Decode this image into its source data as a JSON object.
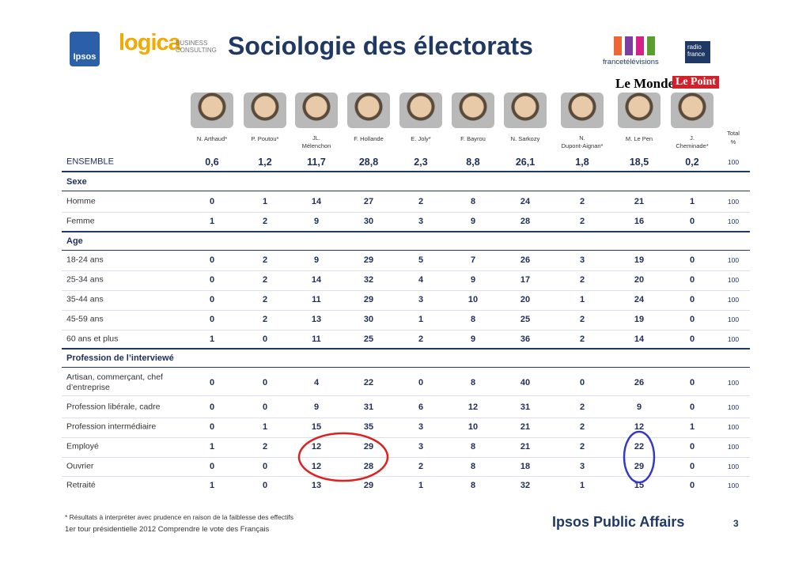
{
  "header": {
    "title": "Sociologie des électorats",
    "logos": [
      "Ipsos",
      "logica",
      "BUSINESS CONSULTING",
      "francetélévisions",
      "radio france",
      "Le Monde",
      "Le Point"
    ]
  },
  "table": {
    "columns": [
      [
        "N. Arthaud*"
      ],
      [
        "P. Poutou*"
      ],
      [
        "JL.",
        "Mélenchon"
      ],
      [
        "F. Hollande"
      ],
      [
        "E. Joly*"
      ],
      [
        "F. Bayrou"
      ],
      [
        "N. Sarkozy"
      ],
      [
        "N.",
        "Dupont-Aignan*"
      ],
      [
        "M. Le Pen"
      ],
      [
        "J.",
        "Cheminade*"
      ]
    ],
    "total_header": [
      "Total",
      "%"
    ],
    "overall": {
      "label": "ENSEMBLE",
      "values": [
        "0,6",
        "1,2",
        "11,7",
        "28,8",
        "2,3",
        "8,8",
        "26,1",
        "1,8",
        "18,5",
        "0,2"
      ],
      "total": "100"
    },
    "sections": [
      {
        "title": "Sexe",
        "rows": [
          {
            "label": "Homme",
            "values": [
              "0",
              "1",
              "14",
              "27",
              "2",
              "8",
              "24",
              "2",
              "21",
              "1"
            ],
            "total": "100"
          },
          {
            "label": "Femme",
            "values": [
              "1",
              "2",
              "9",
              "30",
              "3",
              "9",
              "28",
              "2",
              "16",
              "0"
            ],
            "total": "100"
          }
        ]
      },
      {
        "title": "Age",
        "rows": [
          {
            "label": "18-24 ans",
            "values": [
              "0",
              "2",
              "9",
              "29",
              "5",
              "7",
              "26",
              "3",
              "19",
              "0"
            ],
            "total": "100"
          },
          {
            "label": "25-34 ans",
            "values": [
              "0",
              "2",
              "14",
              "32",
              "4",
              "9",
              "17",
              "2",
              "20",
              "0"
            ],
            "total": "100"
          },
          {
            "label": "35-44 ans",
            "values": [
              "0",
              "2",
              "11",
              "29",
              "3",
              "10",
              "20",
              "1",
              "24",
              "0"
            ],
            "total": "100"
          },
          {
            "label": "45-59 ans",
            "values": [
              "0",
              "2",
              "13",
              "30",
              "1",
              "8",
              "25",
              "2",
              "19",
              "0"
            ],
            "total": "100"
          },
          {
            "label": "60 ans et plus",
            "values": [
              "1",
              "0",
              "11",
              "25",
              "2",
              "9",
              "36",
              "2",
              "14",
              "0"
            ],
            "total": "100"
          }
        ]
      },
      {
        "title": "Profession de l’interviewé",
        "rows": [
          {
            "label": "Artisan, commerçant, chef d’entreprise",
            "values": [
              "0",
              "0",
              "4",
              "22",
              "0",
              "8",
              "40",
              "0",
              "26",
              "0"
            ],
            "total": "100"
          },
          {
            "label": "Profession libérale, cadre",
            "values": [
              "0",
              "0",
              "9",
              "31",
              "6",
              "12",
              "31",
              "2",
              "9",
              "0"
            ],
            "total": "100"
          },
          {
            "label": "Profession intermédiaire",
            "values": [
              "0",
              "1",
              "15",
              "35",
              "3",
              "10",
              "21",
              "2",
              "12",
              "1"
            ],
            "total": "100"
          },
          {
            "label": "Employé",
            "values": [
              "1",
              "2",
              "12",
              "29",
              "3",
              "8",
              "21",
              "2",
              "22",
              "0"
            ],
            "total": "100"
          },
          {
            "label": "Ouvrier",
            "values": [
              "0",
              "0",
              "12",
              "28",
              "2",
              "8",
              "18",
              "3",
              "29",
              "0"
            ],
            "total": "100"
          },
          {
            "label": "Retraité",
            "values": [
              "1",
              "0",
              "13",
              "29",
              "1",
              "8",
              "32",
              "1",
              "15",
              "0"
            ],
            "total": "100"
          }
        ]
      }
    ]
  },
  "footer": {
    "note": "* Résultats à interpréter avec prudence en raison de la faiblesse des effectifs",
    "source": "1er tour présidentielle 2012 Comprendre le vote des Français",
    "brand": "Ipsos Public Affairs",
    "page": "3"
  }
}
